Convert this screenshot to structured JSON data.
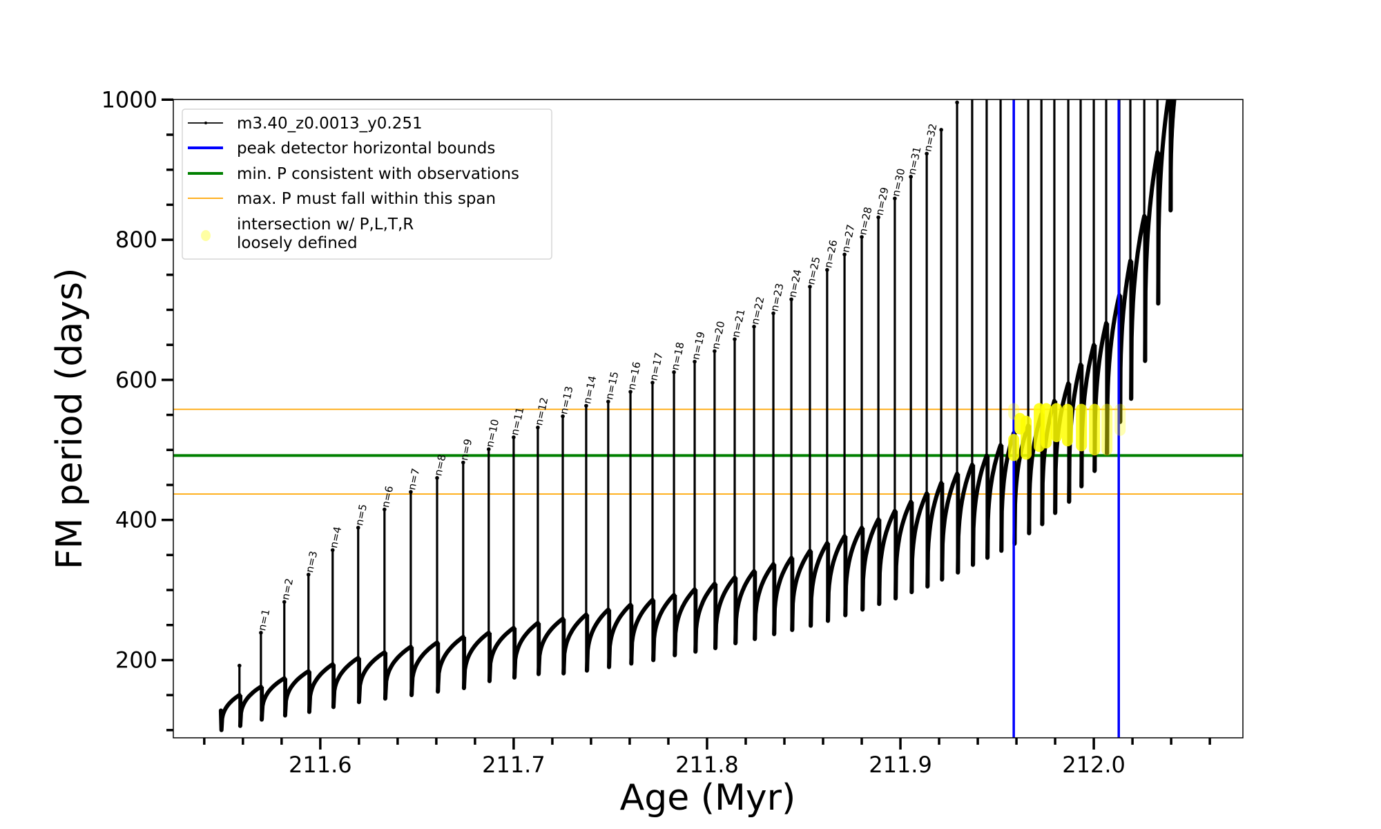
{
  "chart_data": {
    "type": "line",
    "title": "",
    "xlabel": "Age (Myr)",
    "ylabel": "FM period (days)",
    "xlim": [
      211.524,
      212.0771
    ],
    "ylim": [
      89,
      1000.3
    ],
    "x_ticks": [
      {
        "value": 211.6,
        "label": "211.6"
      },
      {
        "value": 211.7,
        "label": "211.7"
      },
      {
        "value": 211.8,
        "label": "211.8"
      },
      {
        "value": 211.9,
        "label": "211.9"
      },
      {
        "value": 212.0,
        "label": "212.0"
      }
    ],
    "x_minor_step": 0.02,
    "y_ticks": [
      {
        "value": 200,
        "label": "200"
      },
      {
        "value": 400,
        "label": "400"
      },
      {
        "value": 600,
        "label": "600"
      },
      {
        "value": 800,
        "label": "800"
      },
      {
        "value": 1000,
        "label": "1000"
      }
    ],
    "y_minor_step": 50,
    "grid": false,
    "legend_position": "top-left",
    "legend": [
      {
        "label": "m3.40_z0.0013_y0.251",
        "style": "line-marker",
        "color": "#000000"
      },
      {
        "label": "peak detector horizontal bounds",
        "style": "line-thick",
        "color": "#0000ff"
      },
      {
        "label": "min. P consistent with observations",
        "style": "line-thick",
        "color": "#008000"
      },
      {
        "label": "max. P must fall within this span",
        "style": "line-thin",
        "color": "#ffa500"
      },
      {
        "label": "intersection w/ P,L,T,R",
        "label2": "loosely defined",
        "style": "marker",
        "color": "#ffff99"
      }
    ],
    "series": {
      "name": "m3.40_z0.0013_y0.251",
      "color": "#000000",
      "start": {
        "age": 211.5486,
        "value": 128,
        "dip": 100
      },
      "end": {
        "age": 212.042,
        "value": 1010
      },
      "spikes": [
        {
          "age": 211.5582,
          "plateau": 150,
          "peak": 192,
          "dip": 106,
          "n": ""
        },
        {
          "age": 211.5693,
          "plateau": 162,
          "peak": 239,
          "dip": 115,
          "n": "n=1"
        },
        {
          "age": 211.5814,
          "plateau": 174,
          "peak": 283,
          "dip": 121,
          "n": "n=2"
        },
        {
          "age": 211.5939,
          "plateau": 184,
          "peak": 322,
          "dip": 126,
          "n": "n=3"
        },
        {
          "age": 211.6064,
          "plateau": 194,
          "peak": 357,
          "dip": 133,
          "n": "n=4"
        },
        {
          "age": 211.6196,
          "plateau": 203,
          "peak": 389,
          "dip": 140,
          "n": "n=5"
        },
        {
          "age": 211.6332,
          "plateau": 211,
          "peak": 415,
          "dip": 145,
          "n": "n=6"
        },
        {
          "age": 211.6468,
          "plateau": 219,
          "peak": 440,
          "dip": 150,
          "n": "n=7"
        },
        {
          "age": 211.6604,
          "plateau": 225,
          "peak": 460,
          "dip": 155,
          "n": "n=8"
        },
        {
          "age": 211.6739,
          "plateau": 233,
          "peak": 482,
          "dip": 160,
          "n": "n=9"
        },
        {
          "age": 211.6871,
          "plateau": 239,
          "peak": 501,
          "dip": 170,
          "n": "n=10"
        },
        {
          "age": 211.7,
          "plateau": 246,
          "peak": 518,
          "dip": 175,
          "n": "n=11"
        },
        {
          "age": 211.7125,
          "plateau": 253,
          "peak": 532,
          "dip": 180,
          "n": "n=12"
        },
        {
          "age": 211.7254,
          "plateau": 259,
          "peak": 548,
          "dip": 181,
          "n": "n=13"
        },
        {
          "age": 211.7375,
          "plateau": 265,
          "peak": 563,
          "dip": 185,
          "n": "n=14"
        },
        {
          "age": 211.7489,
          "plateau": 272,
          "peak": 569,
          "dip": 190,
          "n": "n=15"
        },
        {
          "age": 211.7604,
          "plateau": 279,
          "peak": 583,
          "dip": 195,
          "n": "n=16"
        },
        {
          "age": 211.7718,
          "plateau": 286,
          "peak": 596,
          "dip": 200,
          "n": "n=17"
        },
        {
          "age": 211.7829,
          "plateau": 293,
          "peak": 611,
          "dip": 207,
          "n": "n=18"
        },
        {
          "age": 211.7936,
          "plateau": 301,
          "peak": 626,
          "dip": 212,
          "n": "n=19"
        },
        {
          "age": 211.8039,
          "plateau": 309,
          "peak": 641,
          "dip": 217,
          "n": "n=20"
        },
        {
          "age": 211.8143,
          "plateau": 318,
          "peak": 658,
          "dip": 224,
          "n": "n=21"
        },
        {
          "age": 211.8243,
          "plateau": 327,
          "peak": 676,
          "dip": 230,
          "n": "n=22"
        },
        {
          "age": 211.8343,
          "plateau": 337,
          "peak": 695,
          "dip": 237,
          "n": "n=23"
        },
        {
          "age": 211.8436,
          "plateau": 346,
          "peak": 715,
          "dip": 243,
          "n": "n=24"
        },
        {
          "age": 211.8532,
          "plateau": 356,
          "peak": 733,
          "dip": 249,
          "n": "n=25"
        },
        {
          "age": 211.8621,
          "plateau": 367,
          "peak": 757,
          "dip": 256,
          "n": "n=26"
        },
        {
          "age": 211.8711,
          "plateau": 377,
          "peak": 779,
          "dip": 264,
          "n": "n=27"
        },
        {
          "age": 211.88,
          "plateau": 389,
          "peak": 804,
          "dip": 272,
          "n": "n=28"
        },
        {
          "age": 211.8886,
          "plateau": 401,
          "peak": 832,
          "dip": 280,
          "n": "n=29"
        },
        {
          "age": 211.8971,
          "plateau": 413,
          "peak": 859,
          "dip": 288,
          "n": "n=30"
        },
        {
          "age": 211.9054,
          "plateau": 426,
          "peak": 890,
          "dip": 297,
          "n": "n=31"
        },
        {
          "age": 211.9136,
          "plateau": 438,
          "peak": 923,
          "dip": 305,
          "n": "n=32"
        },
        {
          "age": 211.9211,
          "plateau": 453,
          "peak": 957,
          "dip": 315,
          "n": ""
        },
        {
          "age": 211.9293,
          "plateau": 466,
          "peak": 996,
          "dip": 325,
          "n": ""
        },
        {
          "age": 211.9371,
          "plateau": 479,
          "peak": null,
          "dip": 336,
          "n": ""
        },
        {
          "age": 211.9446,
          "plateau": 492,
          "peak": null,
          "dip": 346,
          "n": ""
        },
        {
          "age": 211.9518,
          "plateau": 507,
          "peak": null,
          "dip": 356,
          "n": ""
        },
        {
          "age": 211.9586,
          "plateau": 524,
          "peak": null,
          "dip": 366,
          "n": ""
        },
        {
          "age": 211.9661,
          "plateau": 535,
          "peak": null,
          "dip": 381,
          "n": ""
        },
        {
          "age": 211.9729,
          "plateau": 551,
          "peak": null,
          "dip": 394,
          "n": ""
        },
        {
          "age": 211.9796,
          "plateau": 570,
          "peak": null,
          "dip": 410,
          "n": ""
        },
        {
          "age": 211.9868,
          "plateau": 595,
          "peak": null,
          "dip": 426,
          "n": ""
        },
        {
          "age": 211.9932,
          "plateau": 622,
          "peak": null,
          "dip": 448,
          "n": ""
        },
        {
          "age": 212.0,
          "plateau": 650,
          "peak": null,
          "dip": 470,
          "n": ""
        },
        {
          "age": 212.0064,
          "plateau": 681,
          "peak": null,
          "dip": 495,
          "n": ""
        },
        {
          "age": 212.0132,
          "plateau": 721,
          "peak": null,
          "dip": 540,
          "n": ""
        },
        {
          "age": 212.0189,
          "plateau": 770,
          "peak": null,
          "dip": 573,
          "n": ""
        },
        {
          "age": 212.0261,
          "plateau": 834,
          "peak": null,
          "dip": 627,
          "n": ""
        },
        {
          "age": 212.0329,
          "plateau": 925,
          "peak": null,
          "dip": 709,
          "n": ""
        },
        {
          "age": 212.0393,
          "plateau": null,
          "peak": null,
          "dip": 842,
          "n": ""
        }
      ]
    },
    "vertical_lines": [
      {
        "age": 211.9586,
        "color": "#0000ff",
        "label": "peak detector horizontal bounds"
      },
      {
        "age": 212.0129,
        "color": "#0000ff",
        "label": "peak detector horizontal bounds"
      }
    ],
    "horizontal_lines": [
      {
        "value": 492,
        "color": "#008000",
        "label": "min. P consistent with observations"
      },
      {
        "value": 558,
        "color": "#ffa500",
        "label": "max. P must fall within this span"
      },
      {
        "value": 437,
        "color": "#ffa500",
        "label": "max. P must fall within this span"
      }
    ],
    "intersection_points": {
      "color": "#ffff00",
      "columns": [
        {
          "age": 211.9586,
          "range": [
            492,
            515
          ],
          "alpha": 0.85
        },
        {
          "age": 211.9586,
          "range": [
            551,
            559
          ],
          "alpha": 0.3
        },
        {
          "age": 211.9618,
          "range": [
            530,
            545
          ],
          "alpha": 0.85
        },
        {
          "age": 211.965,
          "range": [
            494,
            541
          ],
          "alpha": 0.85
        },
        {
          "age": 211.9718,
          "range": [
            505,
            559
          ],
          "alpha": 0.85
        },
        {
          "age": 211.9754,
          "range": [
            510,
            559
          ],
          "alpha": 0.85
        },
        {
          "age": 211.9807,
          "range": [
            519,
            559
          ],
          "alpha": 0.85
        },
        {
          "age": 211.9864,
          "range": [
            513,
            558
          ],
          "alpha": 0.85
        },
        {
          "age": 211.9936,
          "range": [
            506,
            558
          ],
          "alpha": 0.8
        },
        {
          "age": 212.0004,
          "range": [
            500,
            558
          ],
          "alpha": 0.75
        },
        {
          "age": 212.0068,
          "range": [
            500,
            558
          ],
          "alpha": 0.45
        },
        {
          "age": 212.0136,
          "range": [
            528,
            558
          ],
          "alpha": 0.3
        }
      ]
    }
  }
}
